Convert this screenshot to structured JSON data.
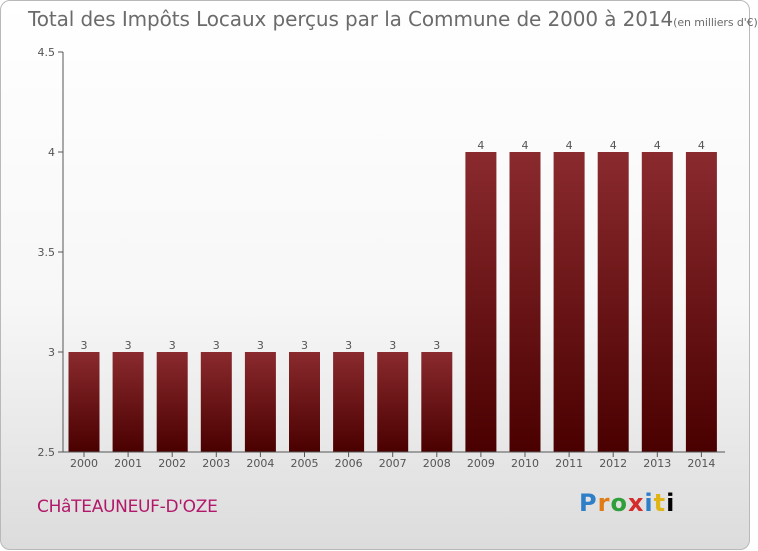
{
  "title": {
    "main": "Total des Impôts Locaux perçus par la Commune de 2000 à 2014",
    "unit": "(en milliers d'€)"
  },
  "commune": "CHâTEAUNEUF-D'OZE",
  "logo": {
    "letters": [
      "P",
      "r",
      "o",
      "x",
      "i",
      "t",
      "i"
    ]
  },
  "colors": {
    "bar_dark": "#4a0000",
    "bar_light": "#8a2a2e",
    "axis": "#555555",
    "text": "#555555",
    "commune": "#b2186a"
  },
  "chart_data": {
    "type": "bar",
    "title": "Total des Impôts Locaux perçus par la Commune de 2000 à 2014 (en milliers d'€)",
    "categories": [
      "2000",
      "2001",
      "2002",
      "2003",
      "2004",
      "2005",
      "2006",
      "2007",
      "2008",
      "2009",
      "2010",
      "2011",
      "2012",
      "2013",
      "2014"
    ],
    "values": [
      3,
      3,
      3,
      3,
      3,
      3,
      3,
      3,
      3,
      4,
      4,
      4,
      4,
      4,
      4
    ],
    "data_labels": [
      "3",
      "3",
      "3",
      "3",
      "3",
      "3",
      "3",
      "3",
      "3",
      "4",
      "4",
      "4",
      "4",
      "4",
      "4"
    ],
    "yticks": [
      2.5,
      3,
      3.5,
      4,
      4.5
    ],
    "ytick_labels": [
      "2.5",
      "3",
      "3.5",
      "4",
      "4.5"
    ],
    "ylim": [
      2.5,
      4.5
    ],
    "xlabel": "",
    "ylabel": ""
  }
}
